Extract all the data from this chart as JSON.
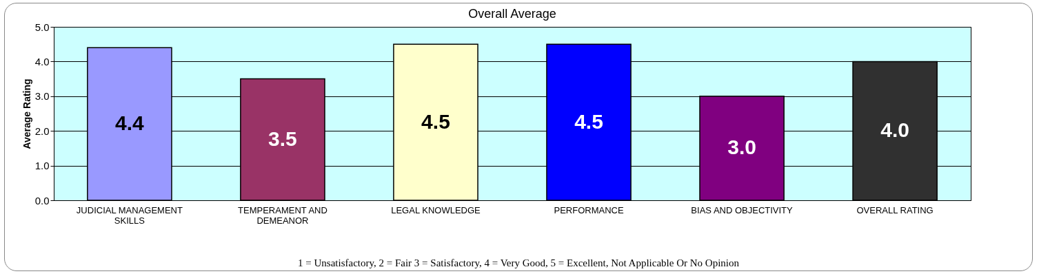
{
  "chart_data": {
    "type": "bar",
    "title": "Overall Average",
    "ylabel": "Average Rating",
    "categories": [
      "JUDICIAL MANAGEMENT SKILLS",
      "TEMPERAMENT AND DEMEANOR",
      "LEGAL KNOWLEDGE",
      "PERFORMANCE",
      "BIAS AND OBJECTIVITY",
      "OVERALL RATING"
    ],
    "values": [
      4.4,
      3.5,
      4.5,
      4.5,
      3.0,
      4.0
    ],
    "colors": [
      "#9999ff",
      "#993366",
      "#ffffcc",
      "#0000ff",
      "#800080",
      "#303030"
    ],
    "ylim": [
      0,
      5
    ],
    "yticks": [
      {
        "value": 0,
        "label": "0.0"
      },
      {
        "value": 1,
        "label": "1.0"
      },
      {
        "value": 2,
        "label": "2.0"
      },
      {
        "value": 3,
        "label": "3.0"
      },
      {
        "value": 4,
        "label": "4.0"
      },
      {
        "value": 5,
        "label": "5.0"
      }
    ],
    "grid": "y",
    "value_labels": [
      "4.4",
      "3.5",
      "4.5",
      "4.5",
      "3.0",
      "4.0"
    ],
    "annotations": [
      "1 = Unsatisfactory, 2 = Fair 3 = Satisfactory, 4 = Very Good, 5 = Excellent, Not Applicable Or No Opinion"
    ]
  }
}
